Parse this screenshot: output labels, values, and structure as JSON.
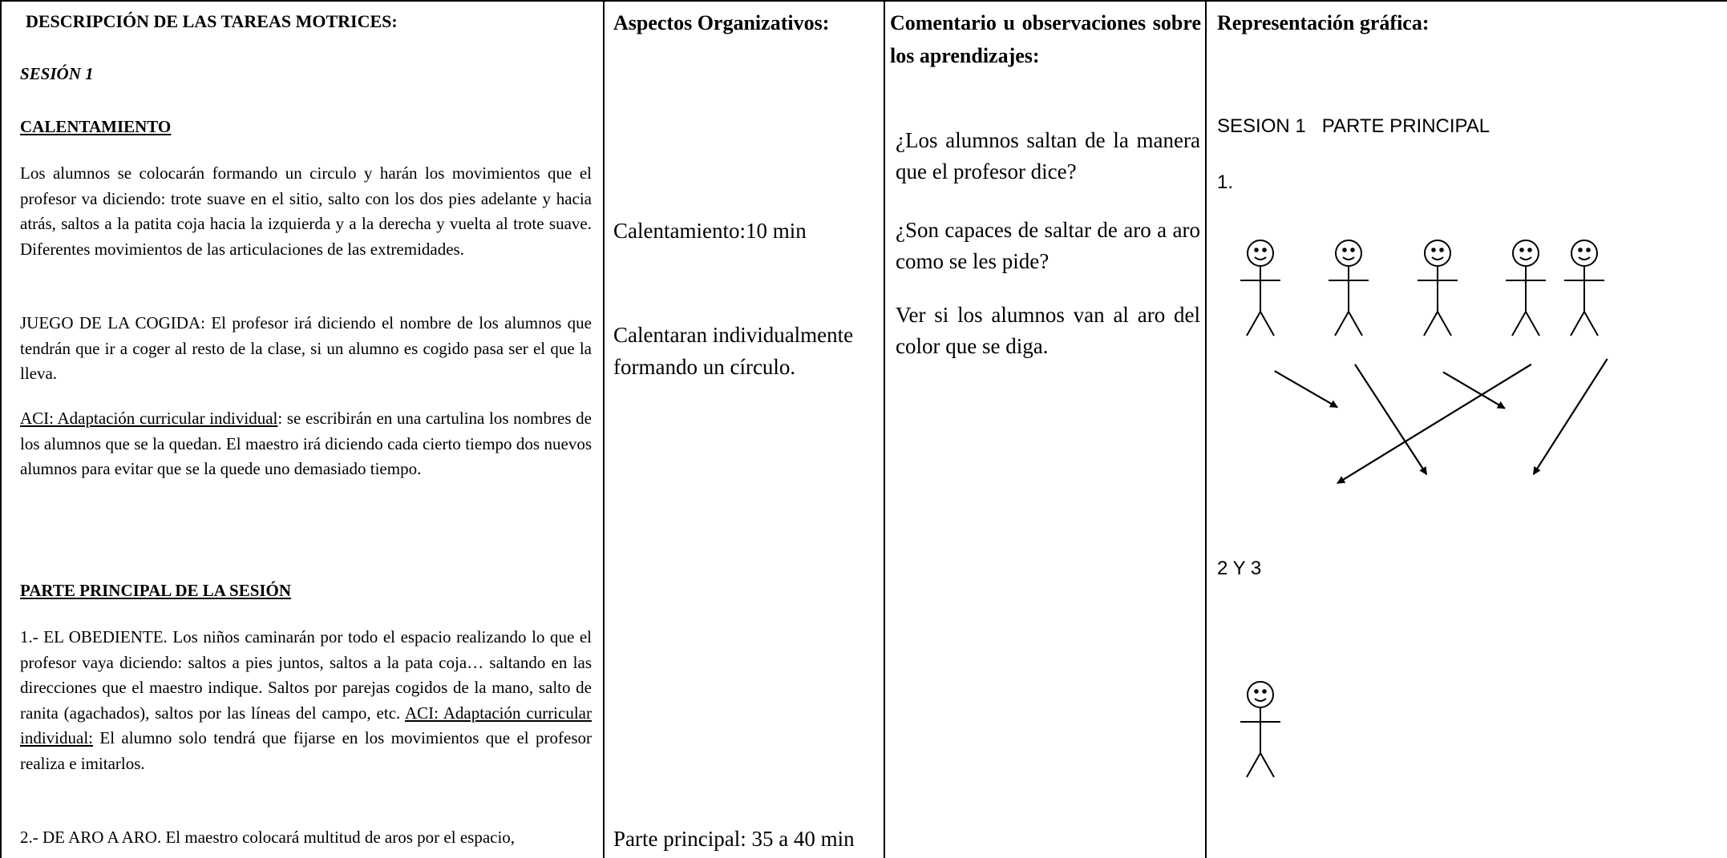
{
  "headers": [
    "DESCRIPCIÓN DE LAS  TAREAS MOTRICES:",
    "Aspectos Organizativos:",
    "Comentario u observaciones sobre los aprendizajes:",
    "Representación gráfica:"
  ],
  "tasks": {
    "session": "SESIÓN 1",
    "warmup_heading": "CALENTAMIENTO",
    "warmup_text": "Los alumnos se colocarán formando un circulo y harán los movimientos que el profesor va diciendo: trote suave en el sitio, salto con los dos pies adelante y hacia atrás, saltos a la patita coja hacia la izquierda y a la derecha y vuelta al trote suave. Diferentes movimientos de  las articulaciones de las extremidades.",
    "game_lead": "JUEGO DE LA COGIDA:",
    "game_text": " El profesor irá diciendo el nombre de los alumnos que tendrán que ir a coger al resto de la clase, si un alumno es cogido pasa ser el que la lleva.",
    "aci_label": "ACI: Adaptación curricular individual",
    "aci_text": ": se escribirán en una cartulina los nombres de los alumnos que se la quedan. El maestro irá diciendo cada cierto tiempo dos nuevos alumnos para evitar que se la quede uno demasiado tiempo.",
    "main_heading": "PARTE PRINCIPAL DE LA SESIÓN",
    "item1_text": "1.- EL OBEDIENTE. Los niños caminarán por todo el espacio realizando lo que el profesor vaya diciendo: saltos a pies juntos, saltos a la pata coja… saltando en las direcciones que el maestro indique. Saltos por parejas cogidos  de la mano, salto de ranita (agachados), saltos por las líneas del campo, etc. ",
    "item1_aci_label": "ACI: Adaptación curricular individual:",
    "item1_aci_text": " El alumno solo tendrá que fijarse en los movimientos que el profesor realiza e imitarlos.",
    "item2_text": "2.- DE ARO A ARO. El maestro colocará multitud de aros por el espacio,"
  },
  "organization": [
    "Calentamiento:10 min",
    "Calentaran individualmente formando un círculo.",
    "Parte principal: 35 a 40 min"
  ],
  "observations": [
    "¿Los alumnos saltan de la manera que el profesor dice?",
    "¿Son capaces de saltar de aro a aro como se les pide?",
    "Ver si los alumnos van al aro del color que se diga."
  ],
  "graphic": {
    "title": "SESION 1   PARTE PRINCIPAL",
    "label1": "1.",
    "label2": "2 Y 3"
  }
}
